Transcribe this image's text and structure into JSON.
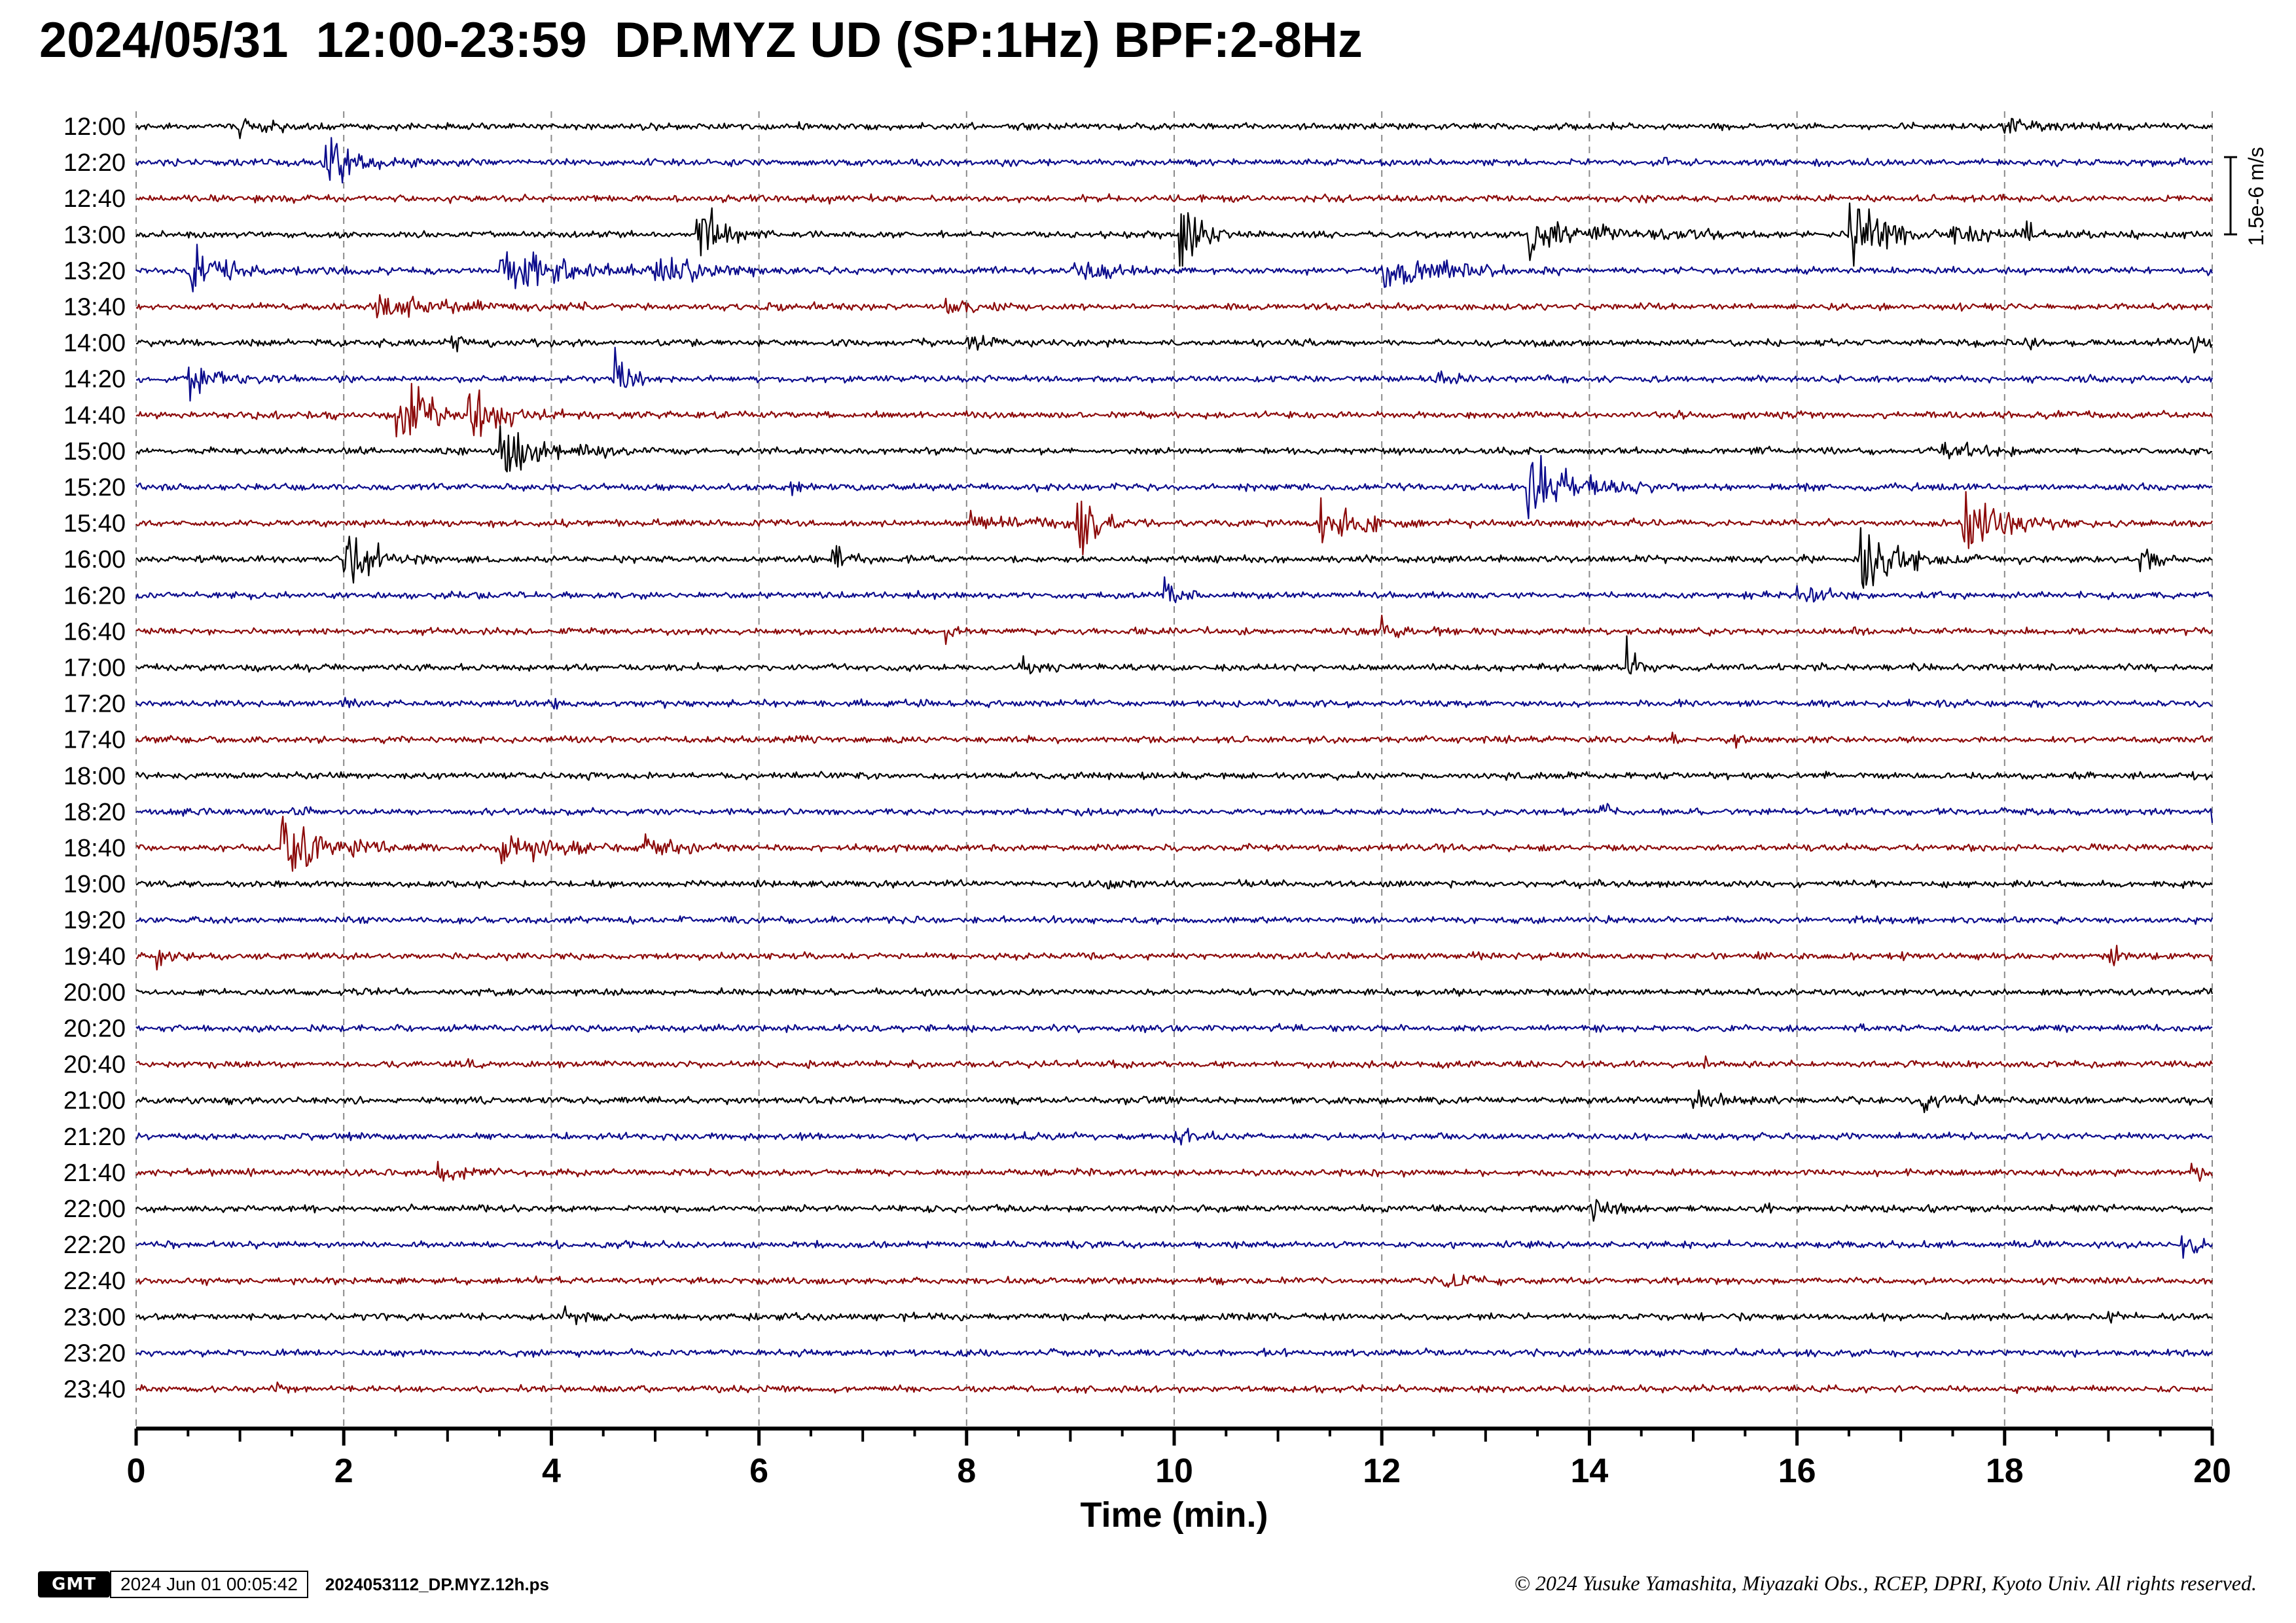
{
  "title": "2024/05/31  12:00-23:59  DP.MYZ UD (SP:1Hz) BPF:2-8Hz",
  "chart_data": {
    "type": "line",
    "title": "2024/05/31  12:00-23:59  DP.MYZ UD (SP:1Hz) BPF:2-8Hz",
    "xlabel": "Time (min.)",
    "xlim": [
      0,
      20
    ],
    "x_ticks": [
      "0",
      "2",
      "4",
      "6",
      "8",
      "10",
      "12",
      "14",
      "16",
      "18",
      "20"
    ],
    "grid": "vertical dashed every 2 min",
    "scale_bar_label": "1.5e-6 m/s",
    "colors": [
      "#000000",
      "#0c0c8c",
      "#8c0a0a"
    ],
    "rows": [
      {
        "label": "12:00",
        "events": [
          [
            1.0,
            0.4,
            0.25
          ],
          [
            18.0,
            0.2,
            0.3
          ]
        ]
      },
      {
        "label": "12:20",
        "events": [
          [
            1.8,
            1.1,
            0.3
          ],
          [
            14.7,
            0.4,
            0.05
          ]
        ]
      },
      {
        "label": "12:40",
        "events": [
          [
            6.5,
            0.3,
            0.1
          ]
        ]
      },
      {
        "label": "13:00",
        "events": [
          [
            5.4,
            1.2,
            0.2
          ],
          [
            10.05,
            2.2,
            0.15
          ],
          [
            13.4,
            0.8,
            0.6
          ],
          [
            16.5,
            1.6,
            0.3
          ],
          [
            18.2,
            1.0,
            0.05
          ],
          [
            17.5,
            0.35,
            0.4
          ]
        ]
      },
      {
        "label": "13:20",
        "events": [
          [
            0.5,
            1.1,
            0.3
          ],
          [
            3.5,
            0.9,
            0.6
          ],
          [
            5.0,
            0.6,
            0.4
          ],
          [
            9.0,
            0.5,
            0.3
          ],
          [
            12.0,
            0.7,
            0.5
          ]
        ]
      },
      {
        "label": "13:40",
        "events": [
          [
            2.3,
            0.5,
            0.6
          ],
          [
            6.0,
            0.3,
            0.05
          ],
          [
            7.8,
            0.3,
            0.3
          ],
          [
            16.3,
            0.5,
            0.05
          ]
        ]
      },
      {
        "label": "14:00",
        "events": [
          [
            3.0,
            0.3,
            0.2
          ],
          [
            8.0,
            0.3,
            0.2
          ],
          [
            18.2,
            0.3,
            0.1
          ],
          [
            19.8,
            0.3,
            0.2
          ]
        ]
      },
      {
        "label": "14:20",
        "events": [
          [
            0.5,
            1.2,
            0.2
          ],
          [
            4.6,
            1.8,
            0.1
          ],
          [
            12.5,
            0.4,
            0.1
          ]
        ]
      },
      {
        "label": "14:40",
        "events": [
          [
            2.5,
            1.8,
            0.25
          ],
          [
            3.2,
            1.1,
            0.3
          ]
        ]
      },
      {
        "label": "15:00",
        "events": [
          [
            3.5,
            1.4,
            0.35
          ],
          [
            17.4,
            0.5,
            0.2
          ]
        ]
      },
      {
        "label": "15:20",
        "events": [
          [
            13.4,
            1.6,
            0.35
          ],
          [
            6.3,
            0.3,
            0.05
          ]
        ]
      },
      {
        "label": "15:40",
        "events": [
          [
            9.05,
            2.0,
            0.15
          ],
          [
            11.4,
            0.8,
            0.4
          ],
          [
            17.6,
            1.5,
            0.3
          ],
          [
            8.0,
            0.3,
            0.8
          ]
        ]
      },
      {
        "label": "16:00",
        "events": [
          [
            2.0,
            1.8,
            0.2
          ],
          [
            6.7,
            1.4,
            0.1
          ],
          [
            16.6,
            2.0,
            0.3
          ],
          [
            19.3,
            0.5,
            0.2
          ]
        ]
      },
      {
        "label": "16:20",
        "events": [
          [
            9.9,
            1.1,
            0.1
          ],
          [
            16.0,
            0.4,
            0.2
          ]
        ]
      },
      {
        "label": "16:40",
        "events": [
          [
            7.8,
            0.3,
            0.1
          ],
          [
            12.0,
            0.3,
            0.2
          ]
        ]
      },
      {
        "label": "17:00",
        "events": [
          [
            14.35,
            1.7,
            0.08
          ],
          [
            8.5,
            0.4,
            0.2
          ]
        ]
      },
      {
        "label": "17:20",
        "events": [
          [
            2.0,
            0.3,
            0.05
          ],
          [
            4.0,
            0.3,
            0.05
          ]
        ]
      },
      {
        "label": "17:40",
        "events": [
          [
            11.3,
            0.3,
            0.05
          ],
          [
            14.8,
            0.4,
            0.05
          ],
          [
            15.4,
            0.4,
            0.05
          ]
        ]
      },
      {
        "label": "18:00",
        "events": []
      },
      {
        "label": "18:20",
        "events": [
          [
            1.5,
            0.3,
            0.1
          ],
          [
            14.1,
            0.4,
            0.05
          ],
          [
            20.0,
            0.4,
            0.05
          ]
        ]
      },
      {
        "label": "18:40",
        "events": [
          [
            1.4,
            2.0,
            0.3
          ],
          [
            3.5,
            0.5,
            0.6
          ],
          [
            4.9,
            0.5,
            0.2
          ]
        ]
      },
      {
        "label": "19:00",
        "events": [
          [
            9.3,
            0.4,
            0.1
          ]
        ]
      },
      {
        "label": "19:20",
        "events": []
      },
      {
        "label": "19:40",
        "events": [
          [
            0.2,
            0.5,
            0.1
          ],
          [
            19.0,
            0.4,
            0.1
          ]
        ]
      },
      {
        "label": "20:00",
        "events": []
      },
      {
        "label": "20:20",
        "events": []
      },
      {
        "label": "20:40",
        "events": [
          [
            3.2,
            0.3,
            0.05
          ],
          [
            15.1,
            0.3,
            0.05
          ]
        ]
      },
      {
        "label": "21:00",
        "events": [
          [
            15.0,
            0.3,
            0.2
          ],
          [
            17.2,
            0.4,
            0.3
          ]
        ]
      },
      {
        "label": "21:20",
        "events": [
          [
            10.0,
            0.4,
            0.2
          ]
        ]
      },
      {
        "label": "21:40",
        "events": [
          [
            2.9,
            0.5,
            0.2
          ],
          [
            19.8,
            0.4,
            0.2
          ]
        ]
      },
      {
        "label": "22:00",
        "events": [
          [
            14.0,
            0.4,
            0.2
          ],
          [
            15.6,
            0.3,
            0.1
          ]
        ]
      },
      {
        "label": "22:20",
        "events": [
          [
            19.7,
            0.4,
            0.2
          ]
        ]
      },
      {
        "label": "22:40",
        "events": [
          [
            12.6,
            0.3,
            0.2
          ]
        ]
      },
      {
        "label": "23:00",
        "events": [
          [
            4.1,
            0.3,
            0.2
          ],
          [
            19.0,
            0.3,
            0.1
          ]
        ]
      },
      {
        "label": "23:20",
        "events": []
      },
      {
        "label": "23:40",
        "events": [
          [
            1.3,
            0.2,
            0.1
          ]
        ]
      }
    ]
  },
  "footer": {
    "gmt_logo": "GMT",
    "timestamp": "2024 Jun 01 00:05:42",
    "ps_file": "2024053112_DP.MYZ.12h.ps",
    "copyright": "© 2024 Yusuke Yamashita, Miyazaki Obs., RCEP, DPRI, Kyoto Univ. All rights reserved."
  }
}
